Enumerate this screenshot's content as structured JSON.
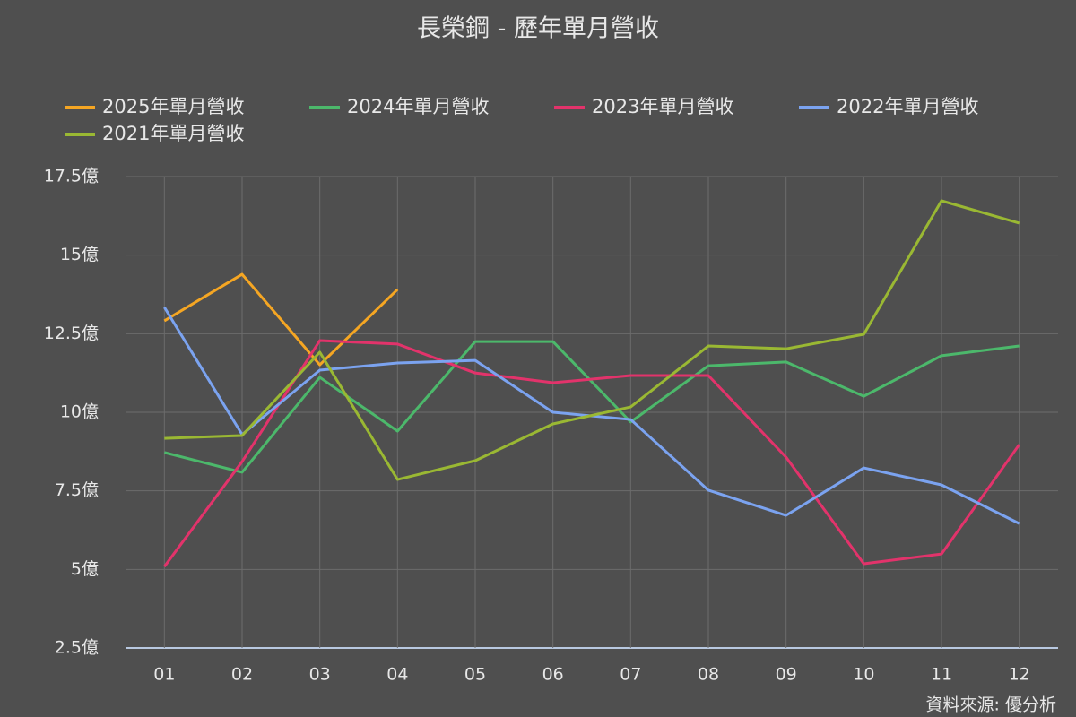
{
  "chart_data": {
    "type": "line",
    "title": "長榮鋼 - 歷年單月營收",
    "source": "資料來源: 優分析",
    "categories": [
      "01",
      "02",
      "03",
      "04",
      "05",
      "06",
      "07",
      "08",
      "09",
      "10",
      "11",
      "12"
    ],
    "series": [
      {
        "name": "2025年單月營收",
        "color": "#f5a623",
        "values": [
          12.91,
          14.39,
          11.51,
          13.91,
          null,
          null,
          null,
          null,
          null,
          null,
          null,
          null
        ]
      },
      {
        "name": "2024年單月營收",
        "color": "#4cb86b",
        "values": [
          8.72,
          8.09,
          11.11,
          9.4,
          12.25,
          12.25,
          9.69,
          11.48,
          11.6,
          10.51,
          11.8,
          12.11
        ]
      },
      {
        "name": "2023年單月營收",
        "color": "#e2336b",
        "values": [
          5.09,
          8.43,
          12.28,
          12.17,
          11.25,
          10.94,
          11.17,
          11.17,
          8.57,
          5.18,
          5.49,
          8.97
        ]
      },
      {
        "name": "2022年單月營收",
        "color": "#7ba3f0",
        "values": [
          13.34,
          9.29,
          11.34,
          11.57,
          11.65,
          10,
          9.77,
          7.52,
          6.72,
          8.23,
          7.69,
          6.46
        ]
      },
      {
        "name": "2021年單月營收",
        "color": "#9ab833",
        "values": [
          9.17,
          9.26,
          11.91,
          7.86,
          8.46,
          9.63,
          10.17,
          12.11,
          12.02,
          12.48,
          16.73,
          16.02
        ]
      }
    ],
    "ylim": [
      2.5,
      17.5
    ],
    "yticks": [
      {
        "value": 2.5,
        "label": "2.5億"
      },
      {
        "value": 5,
        "label": "5億"
      },
      {
        "value": 7.5,
        "label": "7.5億"
      },
      {
        "value": 10,
        "label": "10億"
      },
      {
        "value": 12.5,
        "label": "12.5億"
      },
      {
        "value": 15,
        "label": "15億"
      },
      {
        "value": 17.5,
        "label": "17.5億"
      }
    ],
    "grid": true
  }
}
